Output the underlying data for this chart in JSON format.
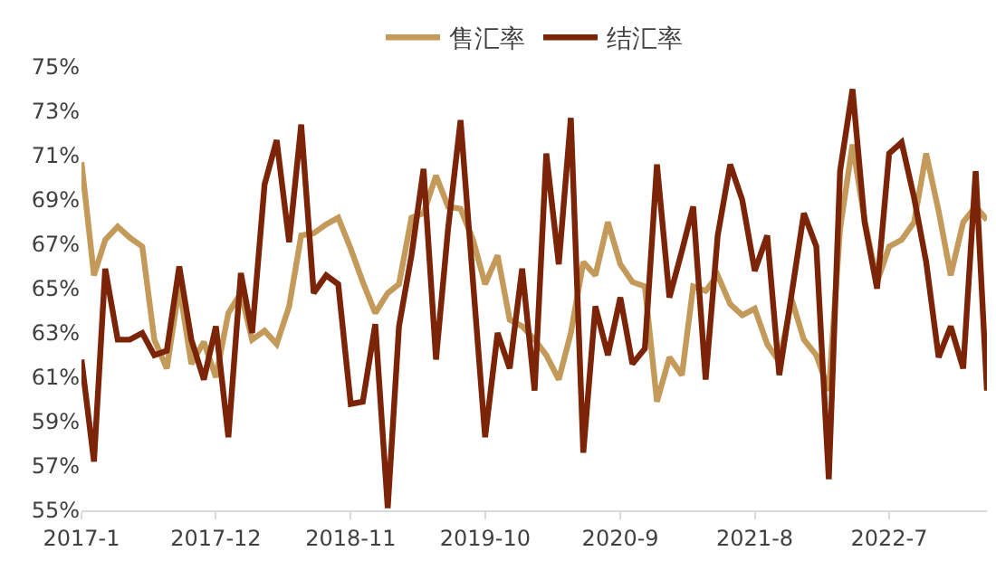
{
  "chart_data": {
    "type": "line",
    "x": [
      "2017-01",
      "2017-02",
      "2017-03",
      "2017-04",
      "2017-05",
      "2017-06",
      "2017-07",
      "2017-08",
      "2017-09",
      "2017-10",
      "2017-11",
      "2017-12",
      "2018-01",
      "2018-02",
      "2018-03",
      "2018-04",
      "2018-05",
      "2018-06",
      "2018-07",
      "2018-08",
      "2018-09",
      "2018-10",
      "2018-11",
      "2018-12",
      "2019-01",
      "2019-02",
      "2019-03",
      "2019-04",
      "2019-05",
      "2019-06",
      "2019-07",
      "2019-08",
      "2019-09",
      "2019-10",
      "2019-11",
      "2019-12",
      "2020-01",
      "2020-02",
      "2020-03",
      "2020-04",
      "2020-05",
      "2020-06",
      "2020-07",
      "2020-08",
      "2020-09",
      "2020-10",
      "2020-11",
      "2020-12",
      "2021-01",
      "2021-02",
      "2021-03",
      "2021-04",
      "2021-05",
      "2021-06",
      "2021-07",
      "2021-08",
      "2021-09",
      "2021-10",
      "2021-11",
      "2021-12",
      "2022-01",
      "2022-02",
      "2022-03",
      "2022-04",
      "2022-05",
      "2022-06",
      "2022-07",
      "2022-08",
      "2022-09",
      "2022-10",
      "2022-11",
      "2022-12",
      "2023-01",
      "2023-02",
      "2023-03"
    ],
    "series": [
      {
        "name": "售汇率",
        "color": "#c49a5a",
        "values": [
          70.7,
          65.6,
          67.2,
          67.8,
          67.3,
          66.9,
          62.7,
          61.4,
          65.1,
          61.6,
          62.6,
          61.0,
          63.9,
          64.8,
          62.7,
          63.1,
          62.5,
          64.2,
          67.4,
          67.5,
          67.9,
          68.2,
          66.8,
          65.3,
          63.9,
          64.8,
          65.2,
          68.2,
          68.4,
          70.1,
          68.7,
          68.6,
          67.2,
          65.2,
          66.5,
          63.6,
          63.3,
          62.7,
          62.0,
          60.9,
          63.0,
          66.2,
          65.6,
          68.0,
          66.1,
          65.3,
          65.1,
          59.9,
          61.9,
          61.1,
          65.1,
          64.9,
          65.6,
          64.3,
          63.8,
          64.1,
          62.5,
          61.7,
          64.5,
          62.7,
          62.0,
          60.4,
          67.7,
          71.5,
          68.1,
          65.3,
          66.9,
          67.2,
          68.0,
          71.1,
          68.5,
          65.6,
          68.0,
          68.7,
          68.1
        ]
      },
      {
        "name": "结汇率",
        "color": "#7b2408",
        "values": [
          61.8,
          57.2,
          65.9,
          62.7,
          62.7,
          63.0,
          62.0,
          62.2,
          66.0,
          62.7,
          60.9,
          63.3,
          58.3,
          65.7,
          63.0,
          69.7,
          71.7,
          67.1,
          72.4,
          64.8,
          65.6,
          65.2,
          59.8,
          59.9,
          63.4,
          55.1,
          63.3,
          66.5,
          70.4,
          61.8,
          67.7,
          72.6,
          65.3,
          58.3,
          63.0,
          61.4,
          65.9,
          60.4,
          71.1,
          66.1,
          72.7,
          57.6,
          64.2,
          62.0,
          64.6,
          61.6,
          62.3,
          70.6,
          64.6,
          66.7,
          68.7,
          60.9,
          67.4,
          70.6,
          69.0,
          65.8,
          67.4,
          61.1,
          64.8,
          68.4,
          66.9,
          56.4,
          70.3,
          74.0,
          68.0,
          65.0,
          71.1,
          71.6,
          69.1,
          66.2,
          61.9,
          63.3,
          61.4,
          70.3,
          60.4
        ]
      }
    ],
    "xlim": [
      "2017-01",
      "2023-03"
    ],
    "xticks": [
      {
        "value": "2017-01",
        "label": "2017-1"
      },
      {
        "value": "2017-12",
        "label": "2017-12"
      },
      {
        "value": "2018-11",
        "label": "2018-11"
      },
      {
        "value": "2019-10",
        "label": "2019-10"
      },
      {
        "value": "2020-09",
        "label": "2020-9"
      },
      {
        "value": "2021-08",
        "label": "2021-8"
      },
      {
        "value": "2022-07",
        "label": "2022-7"
      }
    ],
    "ylim": [
      55,
      75
    ],
    "yticks": [
      {
        "value": 55,
        "label": "55%"
      },
      {
        "value": 57,
        "label": "57%"
      },
      {
        "value": 59,
        "label": "59%"
      },
      {
        "value": 61,
        "label": "61%"
      },
      {
        "value": 63,
        "label": "63%"
      },
      {
        "value": 65,
        "label": "65%"
      },
      {
        "value": 67,
        "label": "67%"
      },
      {
        "value": 69,
        "label": "69%"
      },
      {
        "value": 71,
        "label": "71%"
      },
      {
        "value": 73,
        "label": "73%"
      },
      {
        "value": 75,
        "label": "75%"
      }
    ],
    "legend": "top",
    "marker": "none",
    "line_style": "solid"
  }
}
